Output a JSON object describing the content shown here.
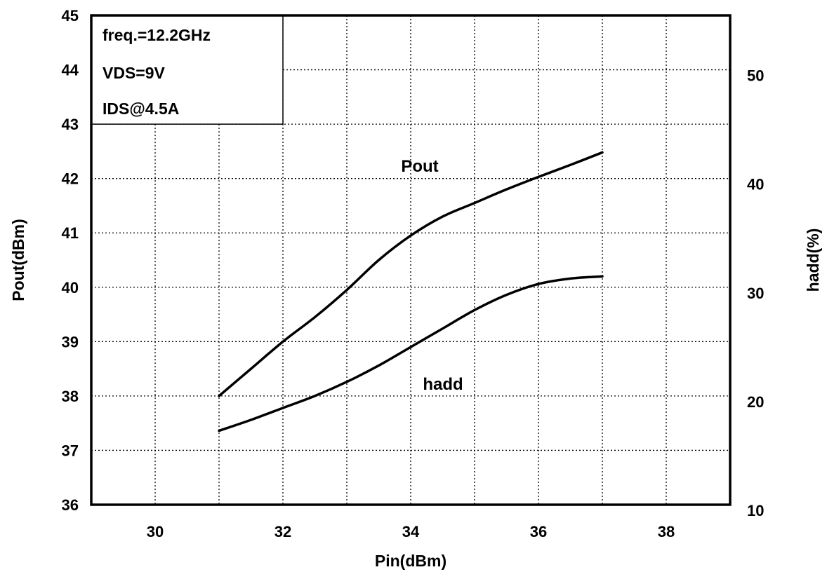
{
  "chart_data": {
    "type": "line",
    "xlabel": "Pin(dBm)",
    "ylabel": "Pout(dBm)",
    "y2label": "hadd(%)",
    "xlim": [
      29,
      39
    ],
    "ylim": [
      36,
      45
    ],
    "y2lim": [
      10,
      55
    ],
    "x_ticks": [
      30,
      32,
      34,
      36,
      38
    ],
    "y_ticks": [
      36,
      37,
      38,
      39,
      40,
      41,
      42,
      43,
      44,
      45
    ],
    "y2_ticks": [
      10,
      20,
      30,
      40,
      50
    ],
    "grid": true,
    "annotations": [
      "freq.=12.2GHz",
      "VDS=9V",
      "IDS@4.5A"
    ],
    "series": [
      {
        "name": "Pout",
        "axis": "left",
        "x": [
          31,
          31.5,
          32,
          32.5,
          33,
          33.5,
          34,
          34.5,
          35,
          35.5,
          36,
          36.5,
          37
        ],
        "y": [
          38.0,
          38.5,
          39.0,
          39.45,
          39.95,
          40.5,
          40.95,
          41.3,
          41.55,
          41.8,
          42.03,
          42.25,
          42.48
        ]
      },
      {
        "name": "hadd",
        "axis": "right",
        "x": [
          31,
          31.5,
          32,
          32.5,
          33,
          33.5,
          34,
          34.5,
          35,
          35.5,
          36,
          36.5,
          37
        ],
        "y": [
          16.8,
          17.8,
          18.9,
          20.0,
          21.3,
          22.8,
          24.5,
          26.2,
          27.9,
          29.3,
          30.3,
          30.8,
          31.0
        ]
      }
    ]
  }
}
